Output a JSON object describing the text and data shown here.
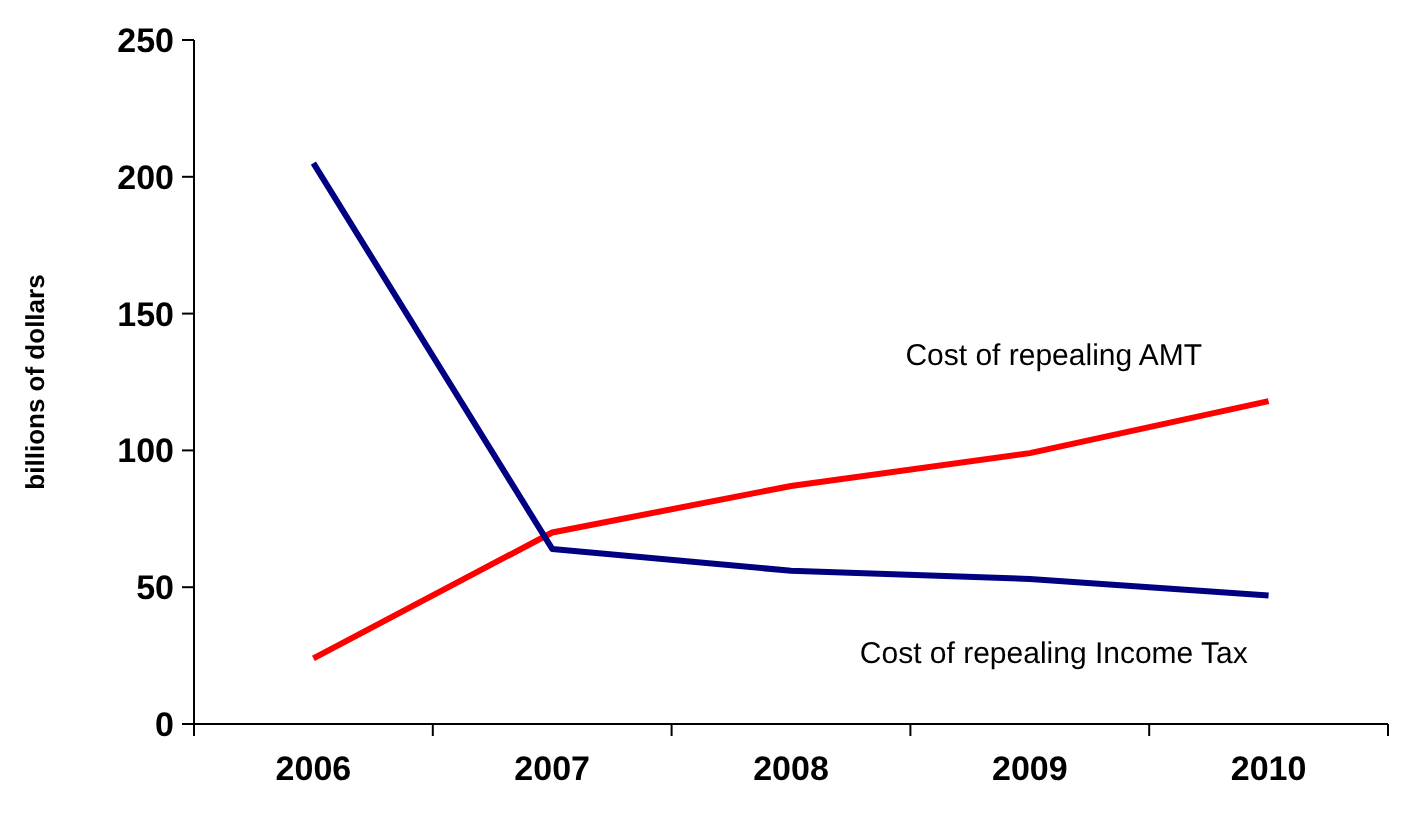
{
  "chart_data": {
    "type": "line",
    "ylabel": "billions of dollars",
    "categories": [
      "2006",
      "2007",
      "2008",
      "2009",
      "2010"
    ],
    "series": [
      {
        "name": "Cost of repealing AMT",
        "color": "#ff0000",
        "values": [
          24,
          70,
          87,
          99,
          118
        ]
      },
      {
        "name": "Cost of repealing Income Tax",
        "color": "#000080",
        "values": [
          205,
          64,
          56,
          53,
          47
        ]
      }
    ],
    "ylim": [
      0,
      250
    ],
    "yticks": [
      0,
      50,
      100,
      150,
      200,
      250
    ],
    "grid": false,
    "marker": "none",
    "line_style": "solid"
  }
}
